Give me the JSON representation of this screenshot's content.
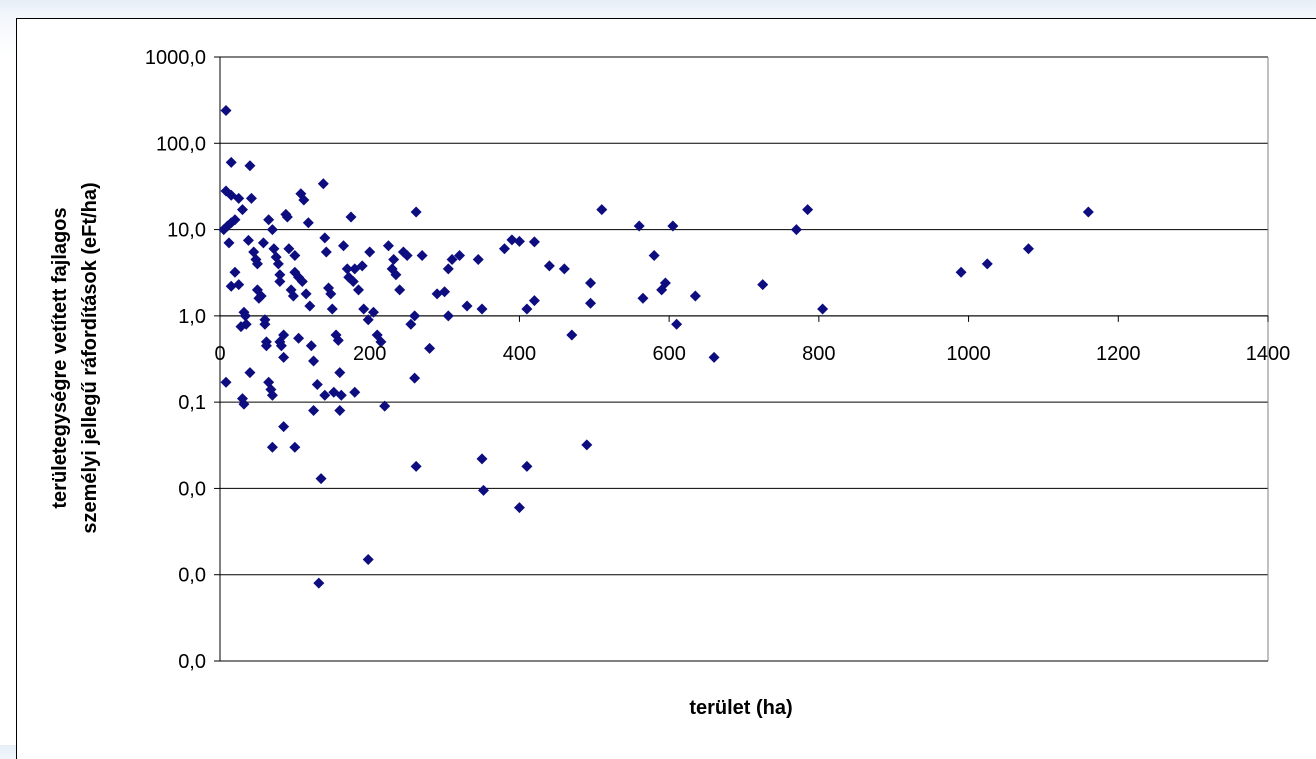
{
  "chart_data": {
    "type": "scatter",
    "title": "",
    "xlabel": "terület (ha)",
    "ylabel_lines": [
      "területegységre vetített fajlagos",
      "személyi jellegű ráfordítások (eFt/ha)"
    ],
    "xlim": [
      0,
      1400
    ],
    "x_ticks": [
      0,
      200,
      400,
      600,
      800,
      1000,
      1200,
      1400
    ],
    "y_scale": "log",
    "ylim": [
      0.0001,
      1000
    ],
    "y_ticks": [
      0.0001,
      0.001,
      0.01,
      0.1,
      1,
      10,
      100,
      1000
    ],
    "y_tick_labels": [
      "0,0",
      "0,0",
      "0,0",
      "0,1",
      "1,0",
      "10,0",
      "100,0",
      "1000,0"
    ],
    "x_axis_crosses_at": 1,
    "gridlines": "horizontal",
    "legend": "none",
    "marker": "diamond",
    "marker_color": "#0d0d80",
    "series": [
      {
        "points": [
          [
            8,
            240
          ],
          [
            15,
            60
          ],
          [
            40,
            55
          ],
          [
            8,
            28
          ],
          [
            15,
            25
          ],
          [
            25,
            23
          ],
          [
            42,
            23
          ],
          [
            30,
            17
          ],
          [
            20,
            13
          ],
          [
            15,
            12
          ],
          [
            10,
            11
          ],
          [
            5,
            10
          ],
          [
            12,
            7
          ],
          [
            8,
            0.17
          ],
          [
            25,
            2.3
          ],
          [
            20,
            3.2
          ],
          [
            15,
            2.2
          ],
          [
            28,
            0.75
          ],
          [
            32,
            1.1
          ],
          [
            34,
            1.0
          ],
          [
            35,
            0.8
          ],
          [
            30,
            0.11
          ],
          [
            32,
            0.095
          ],
          [
            40,
            0.22
          ],
          [
            38,
            7.5
          ],
          [
            45,
            5.5
          ],
          [
            48,
            4.5
          ],
          [
            50,
            4
          ],
          [
            50,
            2.0
          ],
          [
            52,
            1.6
          ],
          [
            55,
            1.7
          ],
          [
            58,
            7
          ],
          [
            60,
            0.9
          ],
          [
            60,
            0.8
          ],
          [
            62,
            0.5
          ],
          [
            62,
            0.45
          ],
          [
            65,
            0.17
          ],
          [
            68,
            0.14
          ],
          [
            70,
            0.12
          ],
          [
            65,
            13
          ],
          [
            70,
            10
          ],
          [
            72,
            6
          ],
          [
            75,
            4.8
          ],
          [
            78,
            4
          ],
          [
            80,
            3
          ],
          [
            80,
            2.5
          ],
          [
            80,
            0.5
          ],
          [
            82,
            0.45
          ],
          [
            85,
            0.6
          ],
          [
            85,
            0.33
          ],
          [
            70,
            0.03
          ],
          [
            85,
            0.052
          ],
          [
            88,
            15
          ],
          [
            90,
            14
          ],
          [
            92,
            6
          ],
          [
            95,
            2
          ],
          [
            98,
            1.7
          ],
          [
            100,
            5
          ],
          [
            100,
            3.2
          ],
          [
            105,
            2.8
          ],
          [
            105,
            0.55
          ],
          [
            100,
            0.03
          ],
          [
            110,
            2.5
          ],
          [
            115,
            1.8
          ],
          [
            108,
            26
          ],
          [
            112,
            22
          ],
          [
            118,
            12
          ],
          [
            120,
            1.3
          ],
          [
            122,
            0.45
          ],
          [
            125,
            0.3
          ],
          [
            125,
            0.08
          ],
          [
            130,
            0.16
          ],
          [
            138,
            34
          ],
          [
            135,
            0.013
          ],
          [
            132,
            0.0008
          ],
          [
            140,
            8
          ],
          [
            142,
            5.5
          ],
          [
            145,
            2.1
          ],
          [
            148,
            1.8
          ],
          [
            150,
            1.2
          ],
          [
            152,
            0.13
          ],
          [
            140,
            0.12
          ],
          [
            155,
            0.6
          ],
          [
            158,
            0.52
          ],
          [
            160,
            0.22
          ],
          [
            162,
            0.12
          ],
          [
            160,
            0.08
          ],
          [
            165,
            6.5
          ],
          [
            170,
            3.5
          ],
          [
            172,
            2.8
          ],
          [
            175,
            14
          ],
          [
            178,
            2.5
          ],
          [
            180,
            3.5
          ],
          [
            180,
            0.13
          ],
          [
            185,
            2
          ],
          [
            192,
            1.2
          ],
          [
            190,
            3.8
          ],
          [
            198,
            0.9
          ],
          [
            200,
            5.5
          ],
          [
            205,
            1.1
          ],
          [
            210,
            0.6
          ],
          [
            215,
            0.5
          ],
          [
            198,
            0.0015
          ],
          [
            220,
            0.09
          ],
          [
            225,
            6.5
          ],
          [
            230,
            3.5
          ],
          [
            232,
            4.5
          ],
          [
            235,
            3
          ],
          [
            240,
            2
          ],
          [
            245,
            5.5
          ],
          [
            250,
            5
          ],
          [
            255,
            0.8
          ],
          [
            260,
            1
          ],
          [
            262,
            0.018
          ],
          [
            270,
            5
          ],
          [
            280,
            0.42
          ],
          [
            290,
            1.8
          ],
          [
            300,
            1.9
          ],
          [
            305,
            1.0
          ],
          [
            260,
            0.19
          ],
          [
            262,
            16
          ],
          [
            305,
            3.5
          ],
          [
            310,
            4.5
          ],
          [
            320,
            5
          ],
          [
            330,
            1.3
          ],
          [
            345,
            4.5
          ],
          [
            350,
            1.2
          ],
          [
            352,
            0.0095
          ],
          [
            350,
            0.022
          ],
          [
            380,
            6
          ],
          [
            390,
            7.6
          ],
          [
            400,
            7.3
          ],
          [
            410,
            1.2
          ],
          [
            420,
            1.5
          ],
          [
            420,
            7.2
          ],
          [
            400,
            0.006
          ],
          [
            410,
            0.018
          ],
          [
            440,
            3.8
          ],
          [
            460,
            3.5
          ],
          [
            470,
            0.6
          ],
          [
            490,
            0.032
          ],
          [
            495,
            1.4
          ],
          [
            495,
            2.4
          ],
          [
            510,
            17
          ],
          [
            560,
            11
          ],
          [
            565,
            1.6
          ],
          [
            580,
            5
          ],
          [
            590,
            2
          ],
          [
            595,
            2.4
          ],
          [
            605,
            11
          ],
          [
            610,
            0.8
          ],
          [
            635,
            1.7
          ],
          [
            660,
            0.33
          ],
          [
            725,
            2.3
          ],
          [
            770,
            10
          ],
          [
            785,
            17
          ],
          [
            805,
            1.2
          ],
          [
            990,
            3.2
          ],
          [
            1025,
            4
          ],
          [
            1080,
            6
          ],
          [
            1160,
            16
          ]
        ]
      }
    ]
  }
}
